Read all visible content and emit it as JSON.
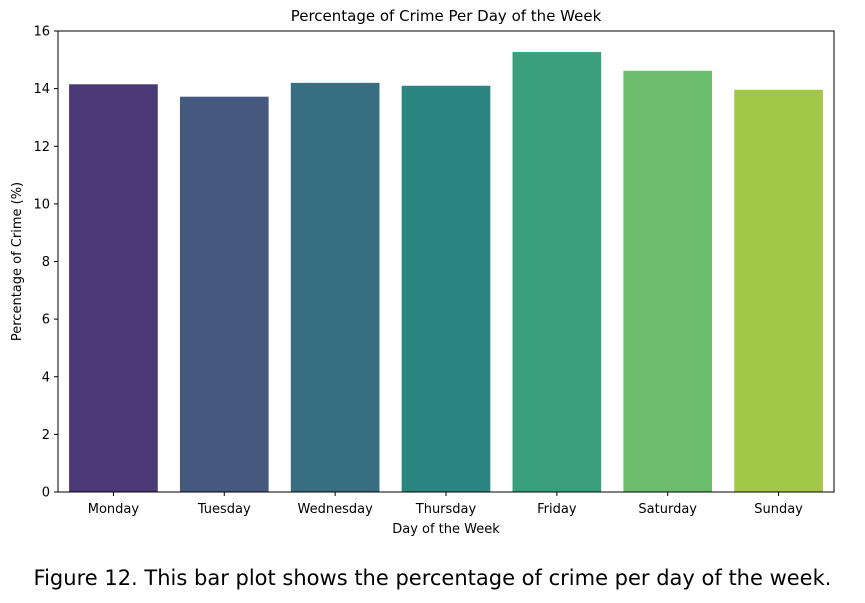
{
  "caption": "Figure 12. This bar plot shows the percentage of crime per day of the week.",
  "chart_data": {
    "type": "bar",
    "title": "Percentage of Crime Per Day of the Week",
    "xlabel": "Day of the Week",
    "ylabel": "Percentage of Crime (%)",
    "categories": [
      "Monday",
      "Tuesday",
      "Wednesday",
      "Thursday",
      "Friday",
      "Saturday",
      "Sunday"
    ],
    "values": [
      14.15,
      13.72,
      14.2,
      14.1,
      15.27,
      14.62,
      13.96
    ],
    "colors": [
      "#4b3876",
      "#46597f",
      "#386e81",
      "#2b8580",
      "#3a9f7d",
      "#6cbe6c",
      "#a3c747"
    ],
    "ylim": [
      0,
      16
    ],
    "yticks": [
      "0",
      "2",
      "4",
      "6",
      "8",
      "10",
      "12",
      "14",
      "16"
    ],
    "grid": false,
    "legend": "none"
  }
}
